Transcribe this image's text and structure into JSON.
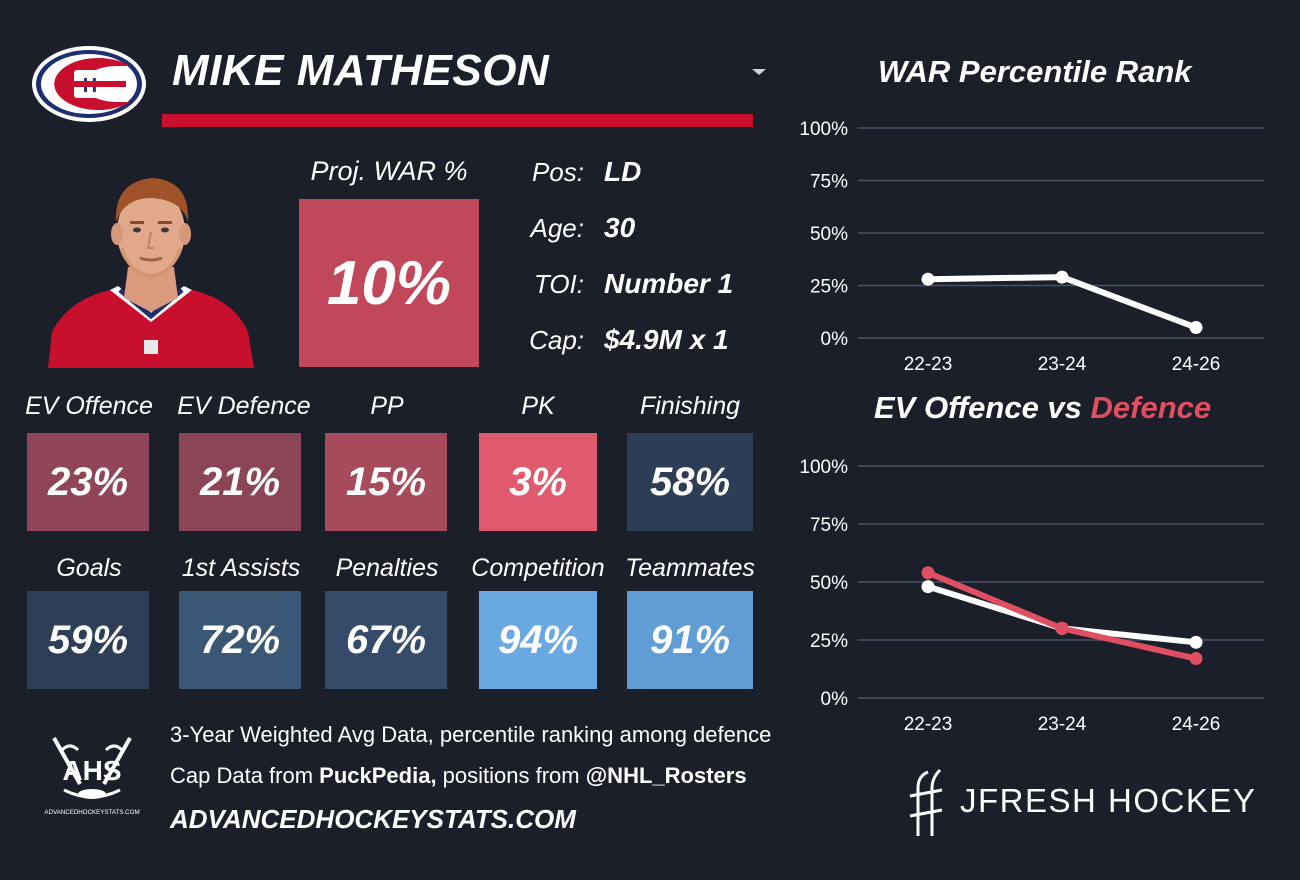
{
  "player": {
    "name": "MIKE MATHESON",
    "team_logo": "montreal-canadiens-logo",
    "photo": "player-headshot"
  },
  "projection": {
    "label": "Proj. WAR %",
    "value": "10%",
    "color": "#c0485a"
  },
  "info": [
    {
      "key": "Pos:",
      "value": "LD"
    },
    {
      "key": "Age:",
      "value": "30"
    },
    {
      "key": "TOI:",
      "value": "Number 1"
    },
    {
      "key": "Cap:",
      "value": "$4.9M x 1"
    }
  ],
  "stats_row1": [
    {
      "label": "EV Offence",
      "value": "23%",
      "color": "#914558"
    },
    {
      "label": "EV Defence",
      "value": "21%",
      "color": "#8c4557"
    },
    {
      "label": "PP",
      "value": "15%",
      "color": "#a54b5c"
    },
    {
      "label": "PK",
      "value": "3%",
      "color": "#df5a6c"
    },
    {
      "label": "Finishing",
      "value": "58%",
      "color": "#2c3d55"
    }
  ],
  "stats_row2": [
    {
      "label": "Goals",
      "value": "59%",
      "color": "#2d3e56"
    },
    {
      "label": "1st Assists",
      "value": "72%",
      "color": "#3b5776"
    },
    {
      "label": "Penalties",
      "value": "67%",
      "color": "#344c69"
    },
    {
      "label": "Competition",
      "value": "94%",
      "color": "#69a8e0"
    },
    {
      "label": "Teammates",
      "value": "91%",
      "color": "#5f9dd4"
    }
  ],
  "footer": {
    "line1": "3-Year Weighted Avg Data, percentile ranking among defence",
    "line2_pre": "Cap Data from ",
    "line2_bold1": "PuckPedia,",
    "line2_mid": " positions from ",
    "line2_bold2": "@NHL_Rosters",
    "site": "ADVANCEDHOCKEYSTATS.COM",
    "ahs_logo_text": "AHS",
    "ahs_logo_sub": "ADVANCEDHOCKEYSTATS.COM",
    "brand": "JFRESH HOCKEY"
  },
  "chart_data": [
    {
      "type": "line",
      "title": "WAR Percentile Rank",
      "categories": [
        "22-23",
        "23-24",
        "24-26"
      ],
      "series": [
        {
          "values": [
            28,
            29,
            5
          ],
          "color": "#ffffff"
        }
      ],
      "ylim": [
        0,
        100
      ],
      "yticks": [
        "0%",
        "25%",
        "50%",
        "75%",
        "100%"
      ],
      "grid": true
    },
    {
      "type": "line",
      "title_part1": "EV Offence vs ",
      "title_part2": "Defence",
      "title_part2_color": "#e04e62",
      "categories": [
        "22-23",
        "23-24",
        "24-26"
      ],
      "series": [
        {
          "name": "EV Offence",
          "values": [
            48,
            30,
            24
          ],
          "color": "#ffffff"
        },
        {
          "name": "Defence",
          "values": [
            54,
            30,
            17
          ],
          "color": "#e04e62"
        }
      ],
      "ylim": [
        0,
        100
      ],
      "yticks": [
        "0%",
        "25%",
        "50%",
        "75%",
        "100%"
      ],
      "grid": true
    }
  ]
}
